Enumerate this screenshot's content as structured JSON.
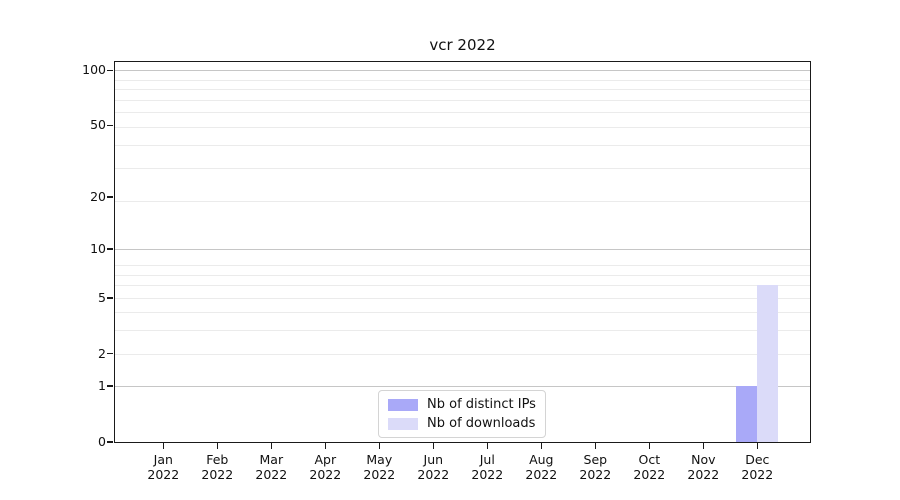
{
  "figure": {
    "title": "vcr 2022"
  },
  "chart_data": {
    "type": "bar",
    "title": "vcr 2022",
    "x_axis": {
      "year": "2022",
      "categories": [
        {
          "month": "Jan",
          "year": "2022"
        },
        {
          "month": "Feb",
          "year": "2022"
        },
        {
          "month": "Mar",
          "year": "2022"
        },
        {
          "month": "Apr",
          "year": "2022"
        },
        {
          "month": "May",
          "year": "2022"
        },
        {
          "month": "Jun",
          "year": "2022"
        },
        {
          "month": "Jul",
          "year": "2022"
        },
        {
          "month": "Aug",
          "year": "2022"
        },
        {
          "month": "Sep",
          "year": "2022"
        },
        {
          "month": "Oct",
          "year": "2022"
        },
        {
          "month": "Nov",
          "year": "2022"
        },
        {
          "month": "Dec",
          "year": "2022"
        }
      ]
    },
    "y_axis": {
      "scale": "log1p",
      "ticks": [
        0,
        1,
        2,
        5,
        10,
        20,
        50,
        100
      ],
      "major_grid_values": [
        1,
        10,
        100
      ],
      "minor_grid_u": [
        3,
        4,
        5,
        6,
        7,
        8,
        9,
        20,
        30,
        40,
        50,
        60,
        70,
        80,
        90
      ],
      "top_u": 112
    },
    "series": [
      {
        "name": "Nb of distinct IPs",
        "color": "#a9a9f8",
        "values": [
          0,
          0,
          0,
          0,
          0,
          0,
          0,
          0,
          0,
          0,
          0,
          1
        ]
      },
      {
        "name": "Nb of downloads",
        "color": "#dbdbf9",
        "values": [
          0,
          0,
          0,
          0,
          0,
          0,
          0,
          0,
          0,
          0,
          0,
          6
        ]
      }
    ],
    "legend": {
      "position": "lower center",
      "entries": [
        "Nb of distinct IPs",
        "Nb of downloads"
      ]
    },
    "grid": true,
    "ylim": [
      0,
      112
    ]
  },
  "colors": {
    "bar_distinct_ips": "#a9a9f8",
    "bar_downloads": "#dbdbf9",
    "grid_minor": "#ebebeb",
    "grid_major": "#c6c6c6",
    "axis": "#1a1a1a",
    "legend_border": "#d4d4d4",
    "background": "#ffffff"
  }
}
